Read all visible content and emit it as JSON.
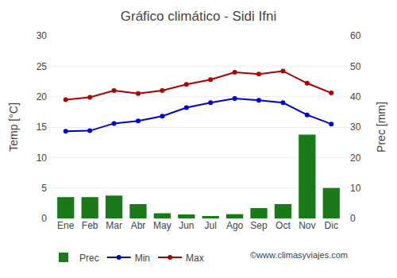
{
  "chart_data": {
    "type": "bar",
    "title": "Gráfico climático - Sidi Ifni",
    "categories": [
      "Ene",
      "Feb",
      "Mar",
      "Abr",
      "May",
      "Jun",
      "Jul",
      "Ago",
      "Sep",
      "Oct",
      "Nov",
      "Dic"
    ],
    "series": [
      {
        "name": "Prec",
        "type": "bar",
        "color": "#1a7a1a",
        "axis": "y2",
        "values": [
          7.0,
          7.0,
          7.5,
          4.7,
          1.7,
          1.3,
          0.8,
          1.4,
          3.4,
          4.7,
          27.5,
          10.0
        ]
      },
      {
        "name": "Min",
        "type": "line",
        "color": "#0000cc",
        "marker": "circle",
        "line_style": "solid",
        "values": [
          14.3,
          14.4,
          15.6,
          16.0,
          16.8,
          18.2,
          19.0,
          19.7,
          19.4,
          19.0,
          17.0,
          15.5
        ]
      },
      {
        "name": "Max",
        "type": "line",
        "color": "#aa0000",
        "marker": "circle",
        "line_style": "solid",
        "values": [
          19.5,
          19.9,
          21.0,
          20.5,
          21.0,
          22.0,
          22.8,
          24.0,
          23.7,
          24.2,
          22.2,
          20.6
        ]
      }
    ],
    "ylabel": "Temp [°C]",
    "y2label": "Prec [mm]",
    "ylim": [
      0,
      30
    ],
    "yticks": [
      0,
      5,
      10,
      15,
      20,
      25,
      30
    ],
    "y2lim": [
      0,
      60
    ],
    "y2ticks": [
      0,
      10,
      20,
      30,
      40,
      50,
      60
    ],
    "grid": true,
    "legend": "bottom",
    "annotations": [
      "©www.climasyviajes.com"
    ]
  }
}
